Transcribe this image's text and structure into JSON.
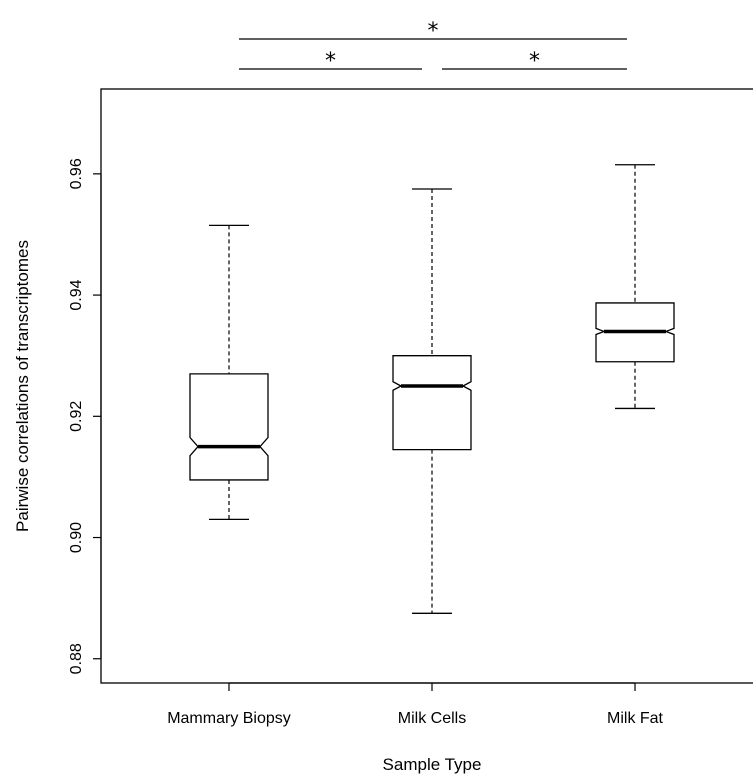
{
  "chart_data": {
    "type": "boxplot",
    "notched": true,
    "title": "",
    "xlabel": "Sample Type",
    "ylabel": "Pairwise correlations of transcriptomes",
    "ylim": [
      0.876,
      0.974
    ],
    "y_ticks": [
      "0.88",
      "0.90",
      "0.92",
      "0.94",
      "0.96"
    ],
    "y_tick_values": [
      0.88,
      0.9,
      0.92,
      0.94,
      0.96
    ],
    "categories": [
      "Mammary Biopsy",
      "Milk Cells",
      "Milk Fat"
    ],
    "boxes": [
      {
        "name": "Mammary Biopsy",
        "whisker_low": 0.903,
        "q1": 0.9095,
        "median": 0.915,
        "q3": 0.927,
        "whisker_high": 0.9515,
        "notch_low": 0.9135,
        "notch_high": 0.9165
      },
      {
        "name": "Milk Cells",
        "whisker_low": 0.8875,
        "q1": 0.9145,
        "median": 0.925,
        "q3": 0.93,
        "whisker_high": 0.9575,
        "notch_low": 0.9243,
        "notch_high": 0.9257
      },
      {
        "name": "Milk Fat",
        "whisker_low": 0.9213,
        "q1": 0.929,
        "median": 0.934,
        "q3": 0.9387,
        "whisker_high": 0.9615,
        "notch_low": 0.9335,
        "notch_high": 0.9345
      }
    ],
    "significance": [
      {
        "from": "Mammary Biopsy",
        "to": "Milk Fat",
        "label": "*"
      },
      {
        "from": "Mammary Biopsy",
        "to": "Milk Cells",
        "label": "*"
      },
      {
        "from": "Milk Cells",
        "to": "Milk Fat",
        "label": "*"
      }
    ],
    "grid": false,
    "colors": {
      "stroke": "#000000",
      "fill": "#ffffff"
    }
  }
}
